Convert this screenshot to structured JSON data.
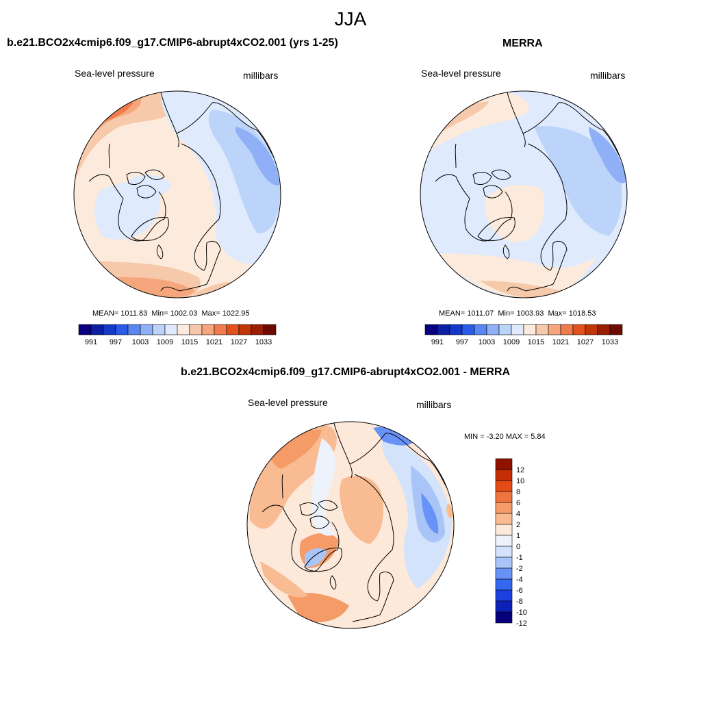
{
  "main_title": "JJA",
  "colors": {
    "sl_palette": [
      "#08007f",
      "#0c1fa3",
      "#1438c8",
      "#2a5ae8",
      "#5a86f2",
      "#8fb0f7",
      "#bcd4fa",
      "#dfeafc",
      "#fcebdc",
      "#f7c9ab",
      "#f5a67c",
      "#f07c4e",
      "#e3521d",
      "#c03606",
      "#9a1e02",
      "#6e0b00"
    ],
    "diff_palette": [
      "#07007a",
      "#0c21b8",
      "#1c3fe0",
      "#3468f0",
      "#6892f5",
      "#a9c5f8",
      "#d3e3fb",
      "#eef3fb",
      "#fde9da",
      "#f8bb92",
      "#f59b67",
      "#f07440",
      "#e64b15",
      "#c52e04",
      "#8f1200"
    ]
  },
  "chart_data": [
    {
      "type": "heatmap",
      "projection": "north-polar-stereographic",
      "title": "b.e21.BCO2x4cmip6.f09_g17.CMIP6-abrupt4xCO2.001 (yrs 1-25)",
      "variable": "Sea-level pressure",
      "units": "millibars",
      "stats": {
        "mean_label": "MEAN=",
        "mean": "1011.83",
        "min_label": "Min=",
        "min": "1002.03",
        "max_label": "Max=",
        "max": "1022.95"
      },
      "colorbar": {
        "orientation": "horizontal",
        "levels": [
          991,
          997,
          1003,
          1009,
          1015,
          1021,
          1027,
          1033
        ],
        "ticks": [
          "991",
          "997",
          "1003",
          "1009",
          "1015",
          "1021",
          "1027",
          "1033"
        ]
      }
    },
    {
      "type": "heatmap",
      "projection": "north-polar-stereographic",
      "title": "MERRA",
      "variable": "Sea-level pressure",
      "units": "millibars",
      "stats": {
        "mean_label": "MEAN=",
        "mean": "1011.07",
        "min_label": "Min=",
        "min": "1003.93",
        "max_label": "Max=",
        "max": "1018.53"
      },
      "colorbar": {
        "orientation": "horizontal",
        "levels": [
          991,
          997,
          1003,
          1009,
          1015,
          1021,
          1027,
          1033
        ],
        "ticks": [
          "991",
          "997",
          "1003",
          "1009",
          "1015",
          "1021",
          "1027",
          "1033"
        ]
      }
    },
    {
      "type": "heatmap",
      "projection": "north-polar-stereographic",
      "title": "b.e21.BCO2x4cmip6.f09_g17.CMIP6-abrupt4xCO2.001 - MERRA",
      "variable": "Sea-level pressure",
      "units": "millibars",
      "stats": {
        "min_label": "MIN =",
        "min": "-3.20",
        "max_label": "MAX =",
        "max": "5.84"
      },
      "colorbar": {
        "orientation": "vertical",
        "levels": [
          -12,
          -10,
          -8,
          -6,
          -4,
          -2,
          -1,
          0,
          1,
          2,
          4,
          6,
          8,
          10,
          12
        ],
        "ticks": [
          "12",
          "10",
          "8",
          "6",
          "4",
          "2",
          "1",
          "0",
          "-1",
          "-2",
          "-4",
          "-6",
          "-8",
          "-10",
          "-12"
        ]
      }
    }
  ]
}
